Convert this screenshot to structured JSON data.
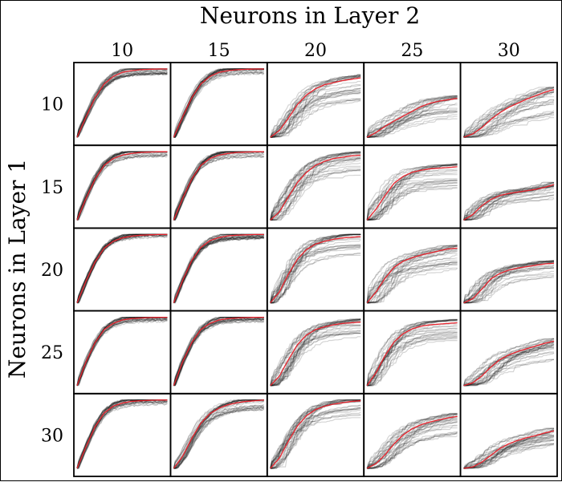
{
  "chart_data": {
    "type": "line",
    "title": "",
    "xlabel": "Neurons in Layer 2",
    "ylabel": "Neurons in Layer 1",
    "column_categories": [
      "10",
      "15",
      "20",
      "25",
      "30"
    ],
    "row_categories": [
      "10",
      "15",
      "20",
      "25",
      "30"
    ],
    "x": [
      0,
      0.1,
      0.2,
      0.3,
      0.4,
      0.5,
      0.6,
      0.7,
      0.8,
      0.9,
      1.0
    ],
    "ylim": [
      0,
      1
    ],
    "xlim": [
      0,
      1
    ],
    "grid": false,
    "colors": {
      "runs": "#111111",
      "mean": "#e8232d"
    },
    "mean_curves": [
      [
        [
          0.0,
          0.3,
          0.58,
          0.78,
          0.89,
          0.95,
          0.975,
          0.99,
          0.995,
          1.0,
          1.0
        ],
        [
          0.0,
          0.3,
          0.58,
          0.78,
          0.89,
          0.95,
          0.975,
          0.99,
          0.995,
          1.0,
          1.0
        ],
        [
          0.0,
          0.1,
          0.28,
          0.48,
          0.62,
          0.71,
          0.77,
          0.8,
          0.83,
          0.85,
          0.87
        ],
        [
          0.0,
          0.07,
          0.16,
          0.24,
          0.31,
          0.38,
          0.45,
          0.5,
          0.53,
          0.55,
          0.57
        ],
        [
          0.0,
          0.05,
          0.14,
          0.26,
          0.36,
          0.44,
          0.5,
          0.56,
          0.61,
          0.66,
          0.7
        ]
      ],
      [
        [
          0.0,
          0.32,
          0.6,
          0.8,
          0.9,
          0.95,
          0.975,
          0.99,
          0.995,
          1.0,
          1.0
        ],
        [
          0.0,
          0.32,
          0.6,
          0.8,
          0.9,
          0.95,
          0.975,
          0.99,
          0.995,
          1.0,
          1.0
        ],
        [
          0.0,
          0.12,
          0.34,
          0.55,
          0.7,
          0.8,
          0.86,
          0.9,
          0.92,
          0.94,
          0.95
        ],
        [
          0.0,
          0.16,
          0.36,
          0.54,
          0.64,
          0.7,
          0.73,
          0.75,
          0.76,
          0.77,
          0.78
        ],
        [
          0.0,
          0.08,
          0.21,
          0.3,
          0.36,
          0.39,
          0.41,
          0.43,
          0.45,
          0.48,
          0.52
        ]
      ],
      [
        [
          0.0,
          0.32,
          0.6,
          0.8,
          0.9,
          0.95,
          0.975,
          0.99,
          0.995,
          1.0,
          1.0
        ],
        [
          0.0,
          0.33,
          0.62,
          0.81,
          0.91,
          0.955,
          0.98,
          0.99,
          0.995,
          1.0,
          1.0
        ],
        [
          0.0,
          0.16,
          0.42,
          0.64,
          0.78,
          0.86,
          0.9,
          0.93,
          0.95,
          0.96,
          0.97
        ],
        [
          0.0,
          0.16,
          0.36,
          0.52,
          0.61,
          0.66,
          0.7,
          0.73,
          0.76,
          0.79,
          0.8
        ],
        [
          0.0,
          0.06,
          0.2,
          0.35,
          0.43,
          0.48,
          0.51,
          0.53,
          0.55,
          0.57,
          0.58
        ]
      ],
      [
        [
          0.0,
          0.35,
          0.63,
          0.82,
          0.91,
          0.96,
          0.98,
          0.99,
          0.995,
          1.0,
          1.0
        ],
        [
          0.0,
          0.35,
          0.63,
          0.82,
          0.91,
          0.96,
          0.98,
          0.99,
          0.995,
          1.0,
          1.0
        ],
        [
          0.0,
          0.14,
          0.38,
          0.6,
          0.74,
          0.82,
          0.86,
          0.89,
          0.91,
          0.92,
          0.93
        ],
        [
          0.0,
          0.19,
          0.44,
          0.64,
          0.76,
          0.83,
          0.87,
          0.89,
          0.9,
          0.91,
          0.92
        ],
        [
          0.0,
          0.04,
          0.14,
          0.27,
          0.38,
          0.45,
          0.5,
          0.54,
          0.58,
          0.62,
          0.65
        ]
      ],
      [
        [
          0.0,
          0.32,
          0.61,
          0.81,
          0.91,
          0.955,
          0.98,
          0.99,
          0.995,
          1.0,
          1.0
        ],
        [
          0.0,
          0.18,
          0.44,
          0.66,
          0.8,
          0.88,
          0.93,
          0.96,
          0.98,
          0.99,
          1.0
        ],
        [
          0.0,
          0.15,
          0.4,
          0.62,
          0.77,
          0.86,
          0.91,
          0.94,
          0.96,
          0.98,
          0.99
        ],
        [
          0.0,
          0.07,
          0.2,
          0.36,
          0.49,
          0.58,
          0.64,
          0.68,
          0.71,
          0.74,
          0.76
        ],
        [
          0.0,
          0.02,
          0.09,
          0.19,
          0.29,
          0.36,
          0.41,
          0.45,
          0.48,
          0.52,
          0.55
        ]
      ]
    ],
    "run_spread": [
      [
        0.06,
        0.06,
        0.3,
        0.4,
        0.42
      ],
      [
        0.06,
        0.06,
        0.25,
        0.32,
        0.32
      ],
      [
        0.05,
        0.05,
        0.22,
        0.3,
        0.35
      ],
      [
        0.05,
        0.05,
        0.22,
        0.22,
        0.35
      ],
      [
        0.05,
        0.12,
        0.2,
        0.3,
        0.36
      ]
    ],
    "runs_per_panel": 30
  }
}
